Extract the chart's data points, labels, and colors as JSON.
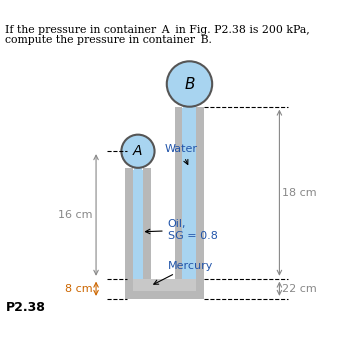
{
  "title_line1": "If the pressure in container ",
  "title_A": "A",
  "title_mid": " in Fig. P2.38 is 200 kPa,",
  "title_line2a": "compute the pressure in container ",
  "title_B": "B",
  "title_line2b": ".",
  "label_A": "A",
  "label_B": "B",
  "label_water": "Water",
  "label_oil": "Oil,\nSG = 0.8",
  "label_mercury": "Mercury",
  "label_p238": "P2.38",
  "dim_16cm": "16 cm",
  "dim_8cm": "8 cm",
  "dim_18cm": "18 cm",
  "dim_22cm": "22 cm",
  "color_water": "#a8d4f0",
  "color_oil": "#a8d4f0",
  "color_mercury": "#c8c8c8",
  "color_tube_wall": "#b8b8b8",
  "color_circle_fill": "#a8d4f0",
  "color_circle_edge": "#555555",
  "bg_color": "#ffffff",
  "text_color_blue": "#2255aa",
  "black": "#000000",
  "dim_color_16": "#888888",
  "dim_color_8": "#cc6600",
  "dim_color_18": "#888888",
  "dim_color_22": "#888888"
}
